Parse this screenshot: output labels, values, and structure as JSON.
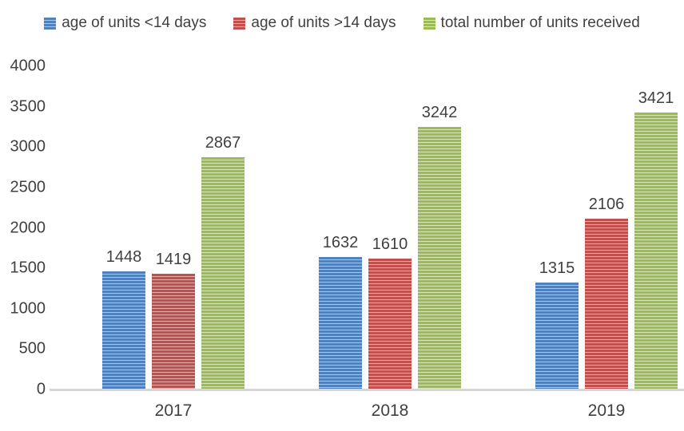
{
  "colors": {
    "text": "#404040",
    "axis_line": "#d6d6d6",
    "background": "#ffffff"
  },
  "legend": {
    "items": [
      {
        "label": "age of units <14 days",
        "color": "#4f81bd",
        "stripe": "#aec6e2"
      },
      {
        "label": "age of units >14 days",
        "color": "#c0504d",
        "stripe": "#e4aeac"
      },
      {
        "label": "total number of units received",
        "color": "#9bbb59",
        "stripe": "#d9e6bc"
      }
    ]
  },
  "chart_data": {
    "type": "bar",
    "title": "",
    "xlabel": "",
    "ylabel": "",
    "categories": [
      "2017",
      "2018",
      "2019"
    ],
    "series": [
      {
        "name": "age of units <14 days",
        "color": "#4f81bd",
        "stripe": "#aec6e2",
        "values": [
          1448,
          1632,
          1315
        ]
      },
      {
        "name": "age of units >14 days",
        "color": "#c0504d",
        "stripe": "#e4aeac",
        "values": [
          1419,
          1610,
          2106
        ]
      },
      {
        "name": "total number of units received",
        "color": "#9bbb59",
        "stripe": "#d9e6bc",
        "values": [
          2867,
          3242,
          3421
        ]
      }
    ],
    "ylim": [
      0,
      4000
    ],
    "ytick_step": 500,
    "yticks": [
      0,
      500,
      1000,
      1500,
      2000,
      2500,
      3000,
      3500,
      4000
    ],
    "grid": false,
    "legend_position": "top",
    "data_labels": true,
    "bar_fill_pattern": "light-horizontal-stripes"
  }
}
